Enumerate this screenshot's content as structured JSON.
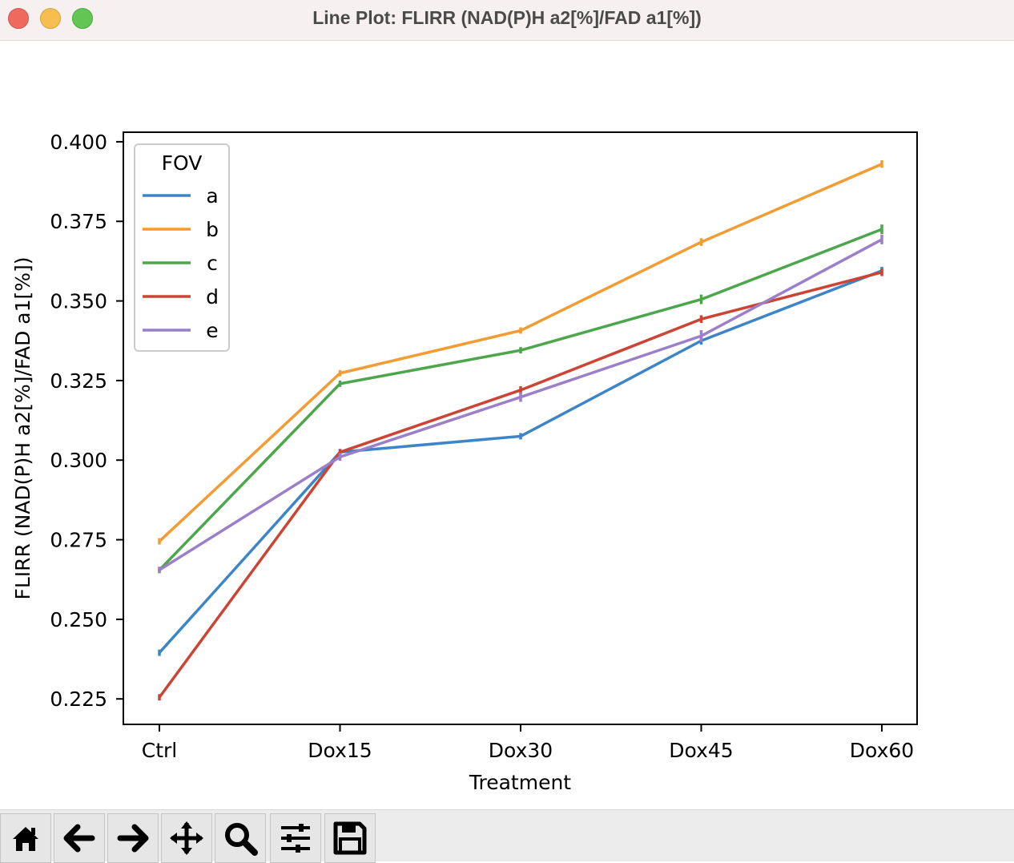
{
  "window": {
    "title": "Line Plot: FLIRR (NAD(P)H a2[%]/FAD a1[%])"
  },
  "toolbar": {
    "buttons": [
      {
        "icon": "home-icon"
      },
      {
        "icon": "back-arrow-icon"
      },
      {
        "icon": "forward-arrow-icon"
      },
      {
        "icon": "pan-move-icon"
      },
      {
        "icon": "zoom-magnifier-icon"
      },
      {
        "icon": "configure-subplots-icon"
      },
      {
        "icon": "save-floppy-icon"
      }
    ]
  },
  "chart_data": {
    "type": "line",
    "title": "",
    "xlabel": "Treatment",
    "ylabel": "FLIRR (NAD(P)H a2[%]/FAD a1[%])",
    "categories": [
      "Ctrl",
      "Dox15",
      "Dox30",
      "Dox45",
      "Dox60"
    ],
    "ylim": [
      0.217,
      0.403
    ],
    "yticks": [
      0.225,
      0.25,
      0.275,
      0.3,
      0.325,
      0.35,
      0.375,
      0.4
    ],
    "ytick_labels": [
      "0.225",
      "0.250",
      "0.275",
      "0.300",
      "0.325",
      "0.350",
      "0.375",
      "0.400"
    ],
    "grid": false,
    "legend": {
      "title": "FOV",
      "placement": "upper-left"
    },
    "series": [
      {
        "name": "a",
        "color": "#3d85c6",
        "values": [
          0.2395,
          0.3025,
          0.3075,
          0.3375,
          0.3595
        ],
        "err": [
          0.001,
          0.001,
          0.001,
          0.0012,
          0.0012
        ]
      },
      {
        "name": "b",
        "color": "#f39c33",
        "values": [
          0.2745,
          0.3273,
          0.3407,
          0.3685,
          0.393
        ],
        "err": [
          0.001,
          0.001,
          0.001,
          0.0012,
          0.0012
        ]
      },
      {
        "name": "c",
        "color": "#4ca64c",
        "values": [
          0.2655,
          0.324,
          0.3345,
          0.3505,
          0.3725
        ],
        "err": [
          0.001,
          0.001,
          0.001,
          0.0015,
          0.0015
        ]
      },
      {
        "name": "d",
        "color": "#cc4433",
        "values": [
          0.2255,
          0.3025,
          0.322,
          0.3443,
          0.359
        ],
        "err": [
          0.001,
          0.001,
          0.0012,
          0.0012,
          0.0012
        ]
      },
      {
        "name": "e",
        "color": "#9b7fc9",
        "values": [
          0.2655,
          0.301,
          0.3198,
          0.339,
          0.3693
        ],
        "err": [
          0.001,
          0.0012,
          0.0015,
          0.0018,
          0.0015
        ]
      }
    ]
  }
}
